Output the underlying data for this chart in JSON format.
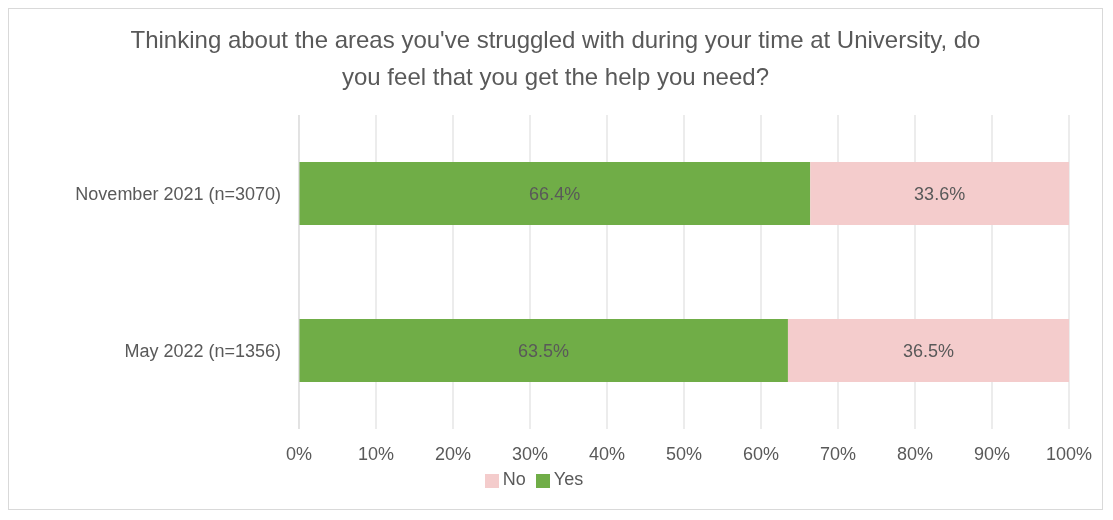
{
  "chart_data": {
    "type": "bar",
    "orientation": "horizontal",
    "stacked": true,
    "title": "Thinking about the areas you've struggled with during your time at University, do you feel that you get the help you need?",
    "categories": [
      "November 2021 (n=3070)",
      "May 2022 (n=1356)"
    ],
    "series": [
      {
        "name": "Yes",
        "color": "#70ad47",
        "values": [
          66.4,
          63.5
        ],
        "value_labels": [
          "66.4%",
          "63.5%"
        ]
      },
      {
        "name": "No",
        "color": "#f4cccc",
        "values": [
          33.6,
          36.5
        ],
        "value_labels": [
          "33.6%",
          "36.5%"
        ]
      }
    ],
    "xlim": [
      0,
      100
    ],
    "xticks": [
      {
        "value": 0,
        "label": "0%"
      },
      {
        "value": 10,
        "label": "10%"
      },
      {
        "value": 20,
        "label": "20%"
      },
      {
        "value": 30,
        "label": "30%"
      },
      {
        "value": 40,
        "label": "40%"
      },
      {
        "value": 50,
        "label": "50%"
      },
      {
        "value": 60,
        "label": "60%"
      },
      {
        "value": 70,
        "label": "70%"
      },
      {
        "value": 80,
        "label": "80%"
      },
      {
        "value": 90,
        "label": "90%"
      },
      {
        "value": 100,
        "label": "100%"
      }
    ],
    "grid": "x",
    "legend": "bottom"
  }
}
